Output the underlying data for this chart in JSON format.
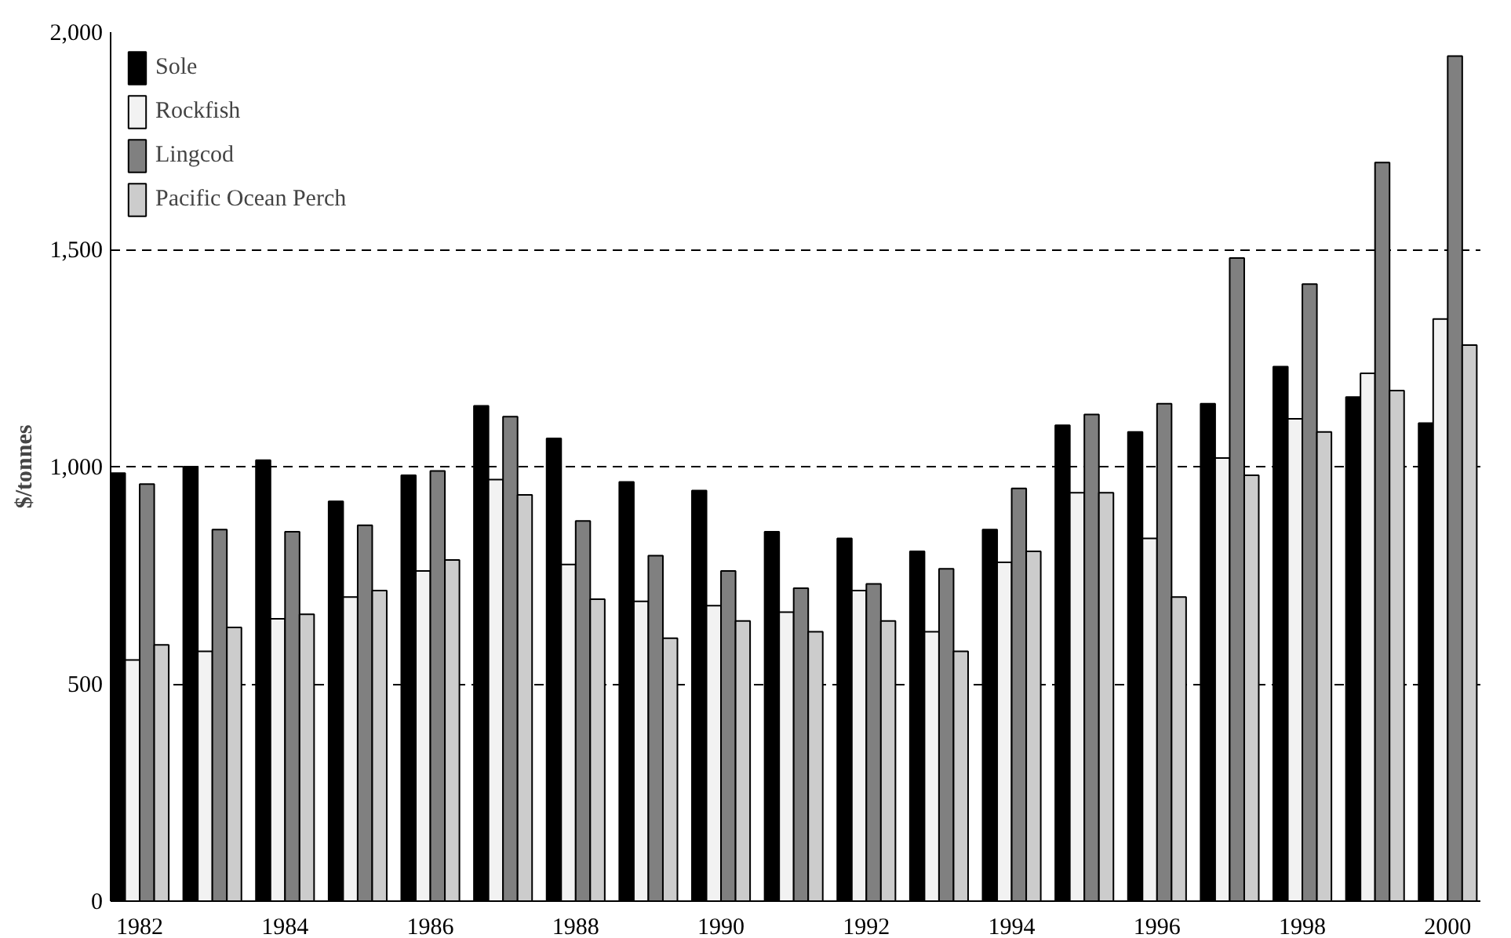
{
  "chart_data": {
    "type": "bar",
    "ylabel": "$/tonnes",
    "x": [
      1982,
      1983,
      1984,
      1985,
      1986,
      1987,
      1988,
      1989,
      1990,
      1991,
      1992,
      1993,
      1994,
      1995,
      1996,
      1997,
      1998,
      1999,
      2000
    ],
    "series": [
      {
        "name": "Sole",
        "color": "#000000",
        "values": [
          985,
          1000,
          1015,
          920,
          980,
          1140,
          1065,
          965,
          945,
          850,
          835,
          805,
          855,
          1095,
          1080,
          1145,
          1230,
          1160,
          1100
        ]
      },
      {
        "name": "Rockfish",
        "color": "#f2f2f2",
        "values": [
          555,
          575,
          650,
          700,
          760,
          970,
          775,
          690,
          680,
          665,
          715,
          620,
          780,
          940,
          835,
          1020,
          1110,
          1215,
          1340
        ]
      },
      {
        "name": "Lingcod",
        "color": "#808080",
        "values": [
          960,
          855,
          850,
          865,
          990,
          1115,
          875,
          795,
          760,
          720,
          730,
          765,
          950,
          1120,
          1145,
          1480,
          1420,
          1700,
          1945
        ]
      },
      {
        "name": "Pacific Ocean Perch",
        "color": "#cccccc",
        "values": [
          590,
          630,
          660,
          715,
          785,
          935,
          695,
          605,
          645,
          620,
          645,
          575,
          805,
          940,
          700,
          980,
          1080,
          1175,
          1280
        ]
      }
    ],
    "xlim": [
      1981.6,
      2000.45
    ],
    "xticks": [
      1982,
      1984,
      1986,
      1988,
      1990,
      1992,
      1994,
      1996,
      1998,
      2000
    ],
    "ylim": [
      0,
      2000
    ],
    "yticks": [
      0,
      {
        "value": 500,
        "label": "500"
      },
      {
        "value": 1000,
        "label": "1,000"
      },
      {
        "value": 1500,
        "label": "1,500"
      },
      {
        "value": 2000,
        "label": "2,000"
      }
    ],
    "grid": "y",
    "legend": "top left"
  }
}
